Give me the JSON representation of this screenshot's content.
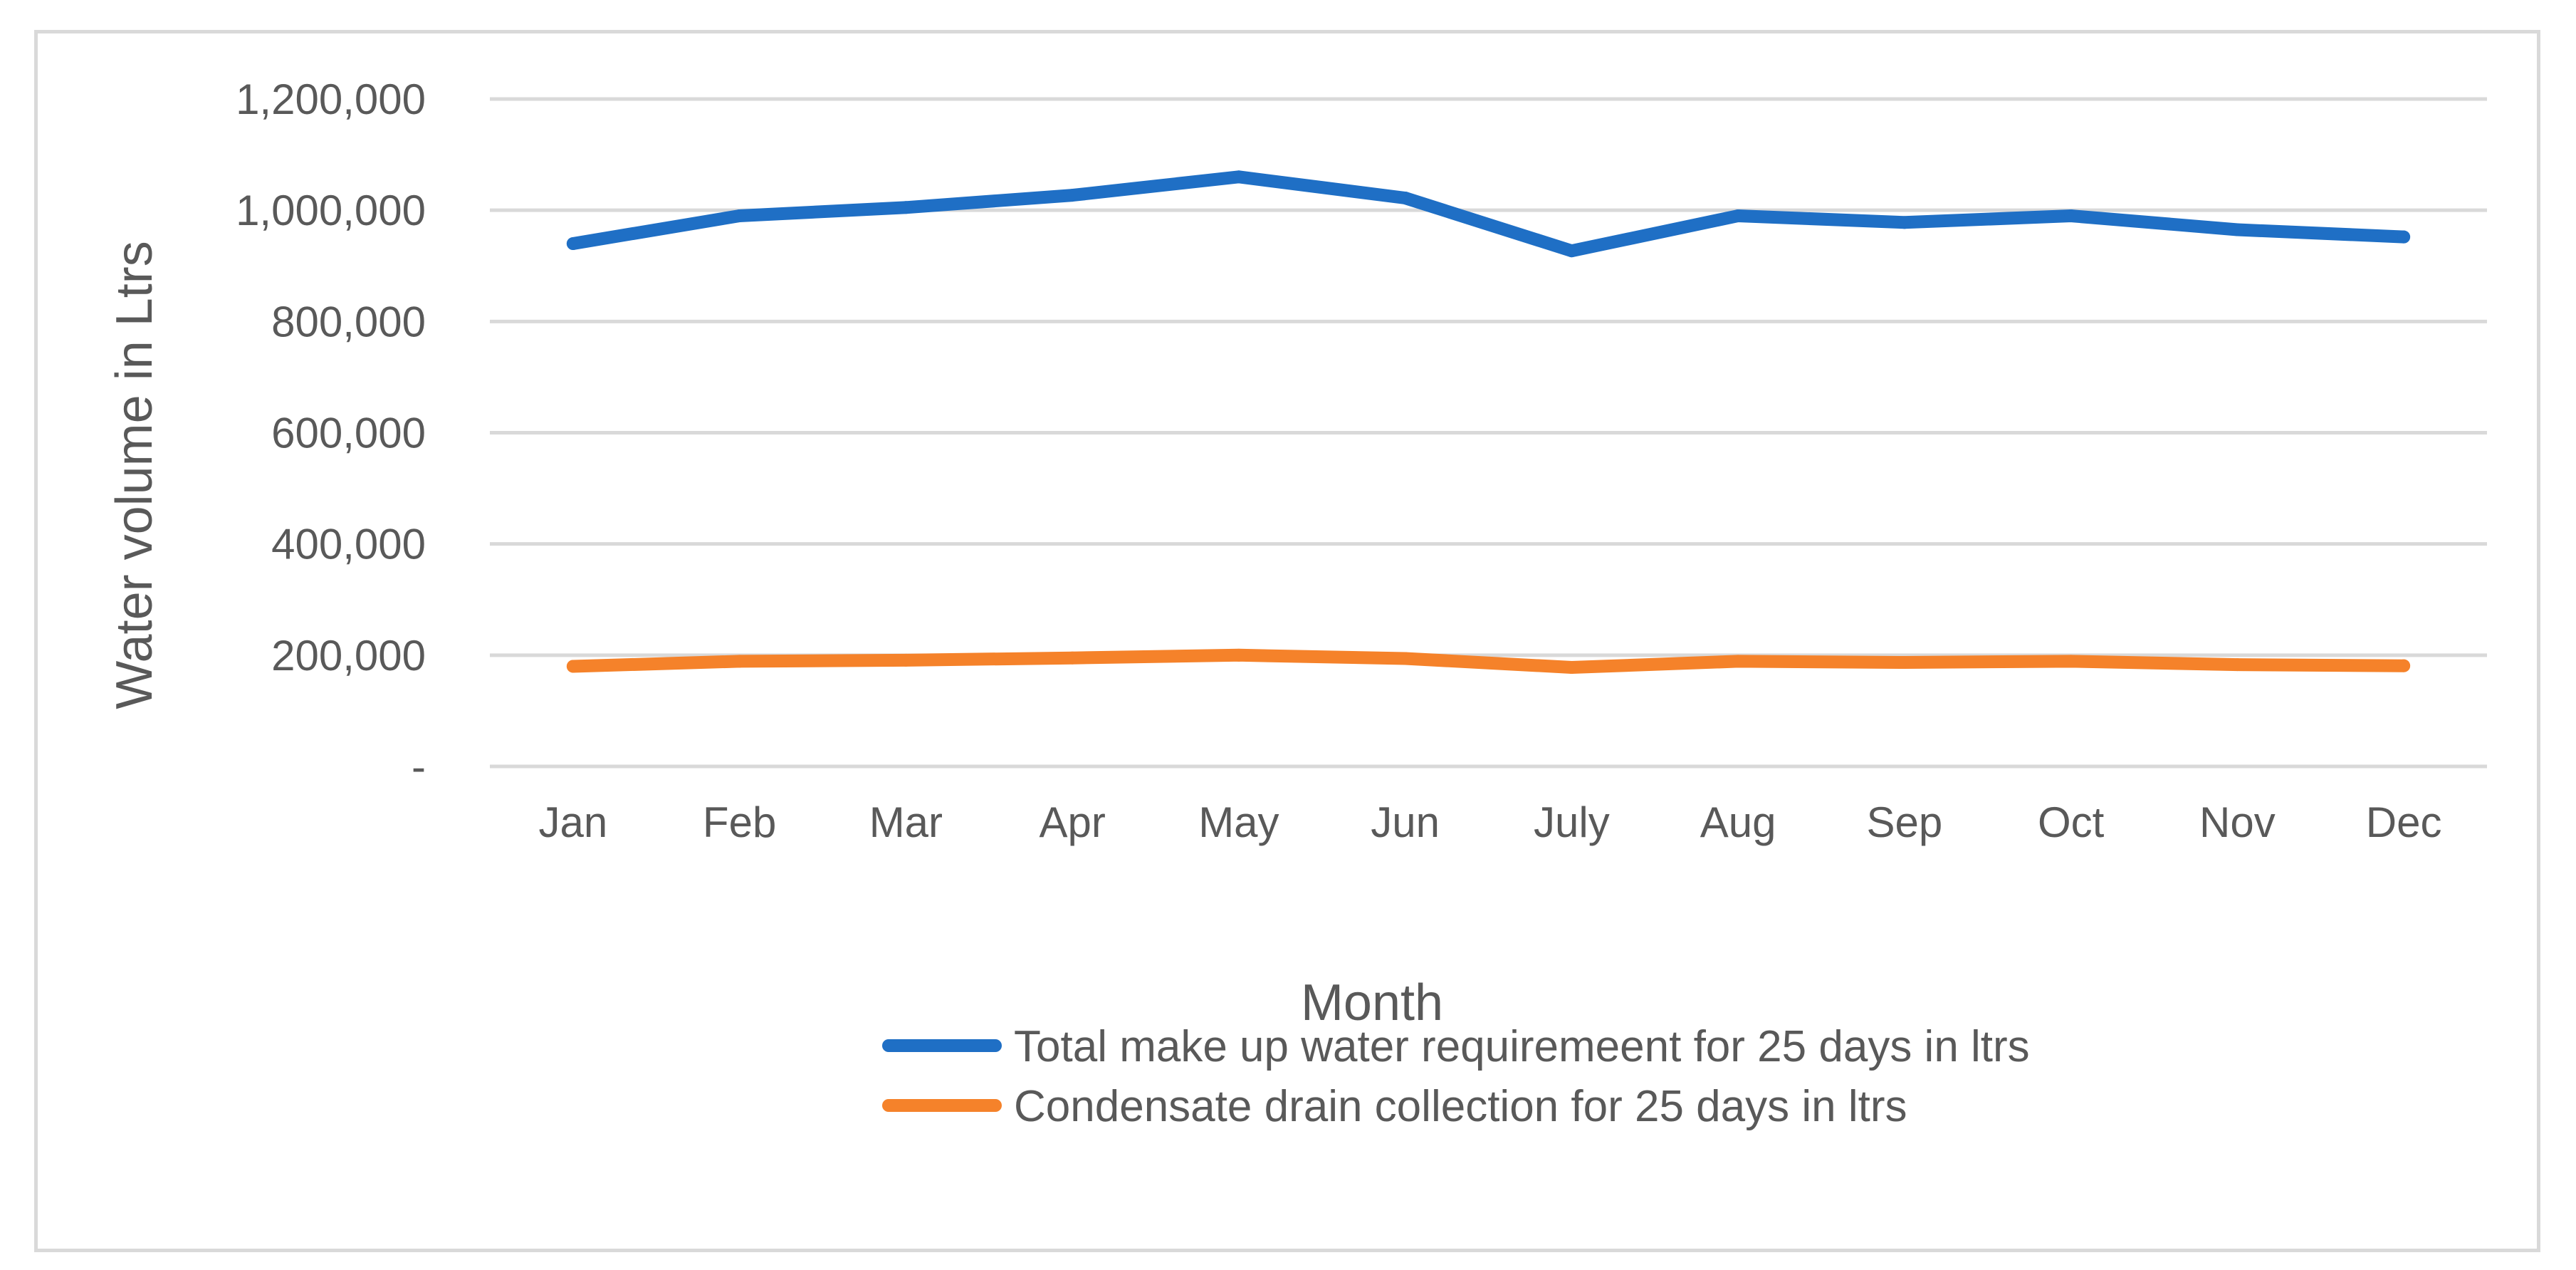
{
  "chart_data": {
    "type": "line",
    "title": "",
    "xlabel": "Month",
    "ylabel": "Water volume in Ltrs",
    "categories": [
      "Jan",
      "Feb",
      "Mar",
      "Apr",
      "May",
      "Jun",
      "July",
      "Aug",
      "Sep",
      "Oct",
      "Nov",
      "Dec"
    ],
    "ylim": [
      0,
      1200000
    ],
    "yticks": [
      0,
      200000,
      400000,
      600000,
      800000,
      1000000,
      1200000
    ],
    "ytick_labels": [
      "-",
      "200,000",
      "400,000",
      "600,000",
      "800,000",
      "1,000,000",
      "1,200,000"
    ],
    "grid": true,
    "legend_position": "bottom",
    "series": [
      {
        "name": "Total make up water requiremeent for 25 days in ltrs",
        "color": "#1f6fc5",
        "values": [
          940000,
          990000,
          1005000,
          1027000,
          1060000,
          1022000,
          927000,
          990000,
          978000,
          990000,
          965000,
          952000
        ]
      },
      {
        "name": "Condensate drain collection for 25 days in ltrs",
        "color": "#f5822a",
        "values": [
          180000,
          189000,
          191000,
          195000,
          200000,
          194000,
          178000,
          189000,
          187000,
          189000,
          183000,
          181000
        ]
      }
    ]
  }
}
